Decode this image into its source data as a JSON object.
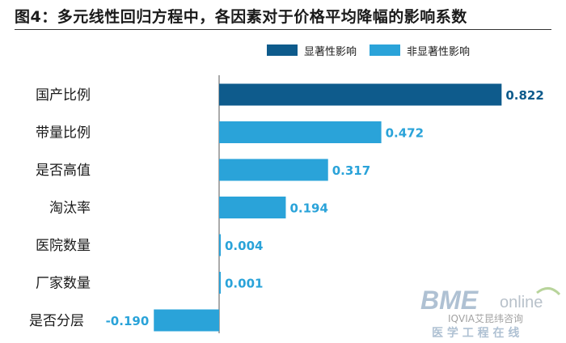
{
  "title": "图4：多元线性回归方程中，各因素对于价格平均降幅的影响系数",
  "legend": [
    {
      "label": "显著性影响",
      "color": "#0e5b8c"
    },
    {
      "label": "非显著性影响",
      "color": "#2aa3d9"
    }
  ],
  "watermark": {
    "logo": "BME",
    "logo_suffix": "online",
    "channel": "IQVIA艾昆纬咨询",
    "subtitle": "医 学 工 程 在 线"
  },
  "chart_data": {
    "type": "bar",
    "orientation": "horizontal",
    "title": "图4：多元线性回归方程中，各因素对于价格平均降幅的影响系数",
    "categories": [
      "国产比例",
      "带量比例",
      "是否高值",
      "淘汰率",
      "医院数量",
      "厂家数量",
      "是否分层"
    ],
    "values": [
      0.822,
      0.472,
      0.317,
      0.194,
      0.004,
      0.001,
      -0.19
    ],
    "value_labels": [
      "0.822",
      "0.472",
      "0.317",
      "0.194",
      "0.004",
      "0.001",
      "-0.190"
    ],
    "significant": [
      true,
      false,
      false,
      false,
      false,
      false,
      false
    ],
    "legend_position": "top-right",
    "grid": false,
    "xlim": [
      -0.3,
      1.0
    ]
  }
}
